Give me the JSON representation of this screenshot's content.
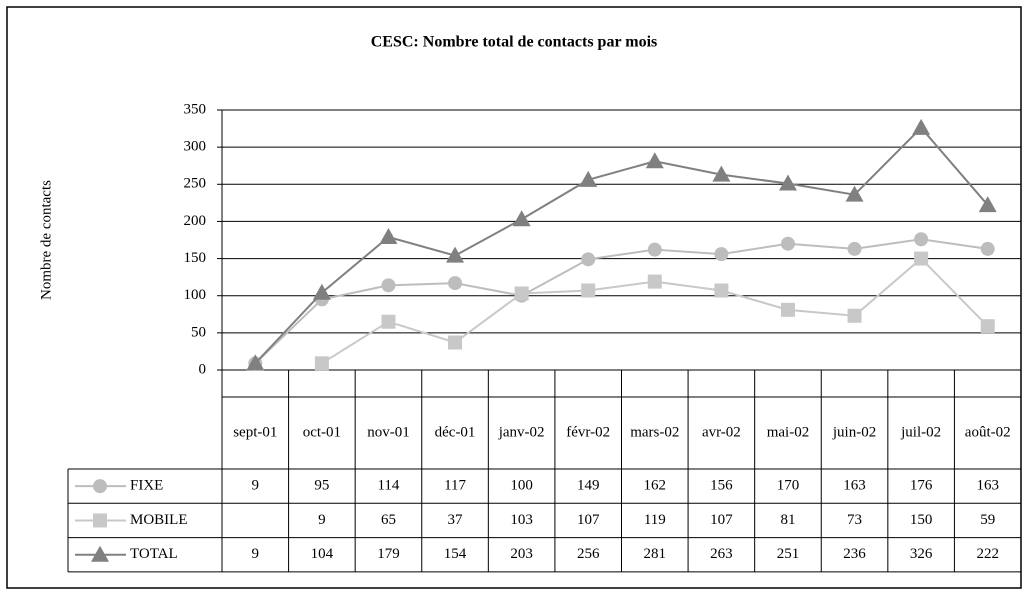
{
  "chart_data": {
    "type": "line",
    "title": "CESC: Nombre total de contacts par mois",
    "y_label": "Nombre de contacts",
    "categories": [
      "sept-01",
      "oct-01",
      "nov-01",
      "déc-01",
      "janv-02",
      "févr-02",
      "mars-02",
      "avr-02",
      "mai-02",
      "juin-02",
      "juil-02",
      "août-02"
    ],
    "series": [
      {
        "name": "FIXE",
        "color": "#bdbdbd",
        "marker": "circle",
        "values": [
          9,
          95,
          114,
          117,
          100,
          149,
          162,
          156,
          170,
          163,
          176,
          163
        ]
      },
      {
        "name": "MOBILE",
        "color": "#c8c8c8",
        "marker": "square",
        "values": [
          null,
          9,
          65,
          37,
          103,
          107,
          119,
          107,
          81,
          73,
          150,
          59
        ]
      },
      {
        "name": "TOTAL",
        "color": "#808080",
        "marker": "triangle",
        "values": [
          9,
          104,
          179,
          154,
          203,
          256,
          281,
          263,
          251,
          236,
          326,
          222
        ]
      }
    ],
    "ylim": [
      0,
      350
    ],
    "yticks": [
      0,
      50,
      100,
      150,
      200,
      250,
      300,
      350
    ],
    "grid": true
  }
}
